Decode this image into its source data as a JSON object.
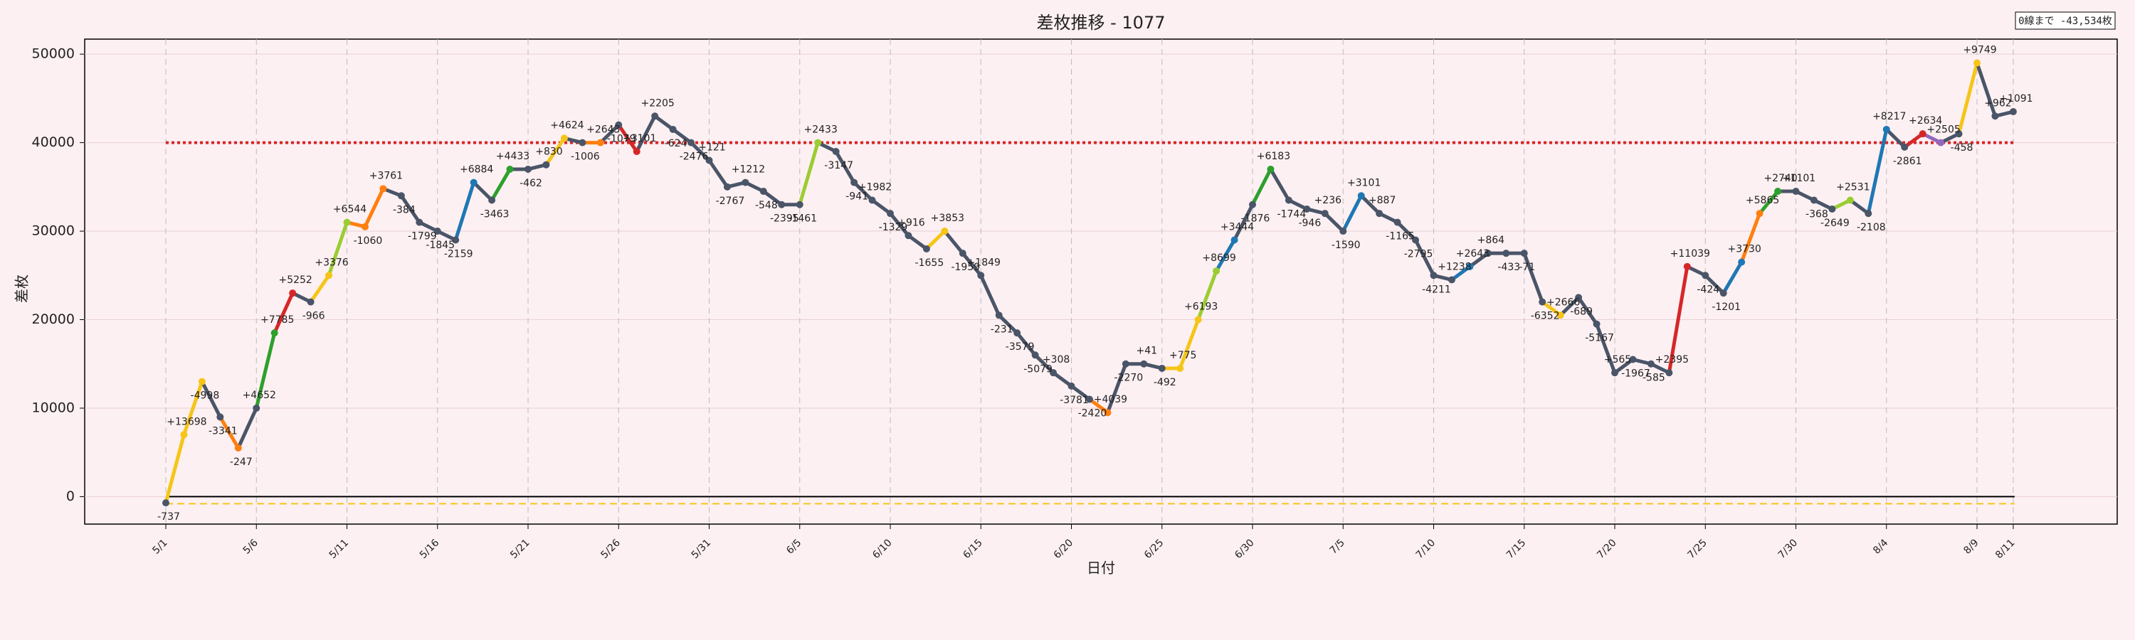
{
  "chart_data": {
    "type": "line",
    "title": "差枚推移 - 1077",
    "note": "0線まで -43,534枚",
    "xlabel": "日付",
    "ylabel": "差枚",
    "categories": [
      "5/1",
      null,
      null,
      null,
      null,
      "5/6",
      null,
      null,
      null,
      null,
      "5/11",
      null,
      null,
      null,
      null,
      "5/16",
      null,
      null,
      null,
      null,
      "5/21",
      null,
      null,
      null,
      null,
      "5/26",
      null,
      null,
      null,
      null,
      "5/31",
      null,
      null,
      null,
      null,
      "6/5",
      null,
      null,
      null,
      null,
      "6/10",
      null,
      null,
      null,
      null,
      "6/15",
      null,
      null,
      null,
      null,
      "6/20",
      null,
      null,
      null,
      null,
      "6/25",
      null,
      null,
      null,
      null,
      "6/30",
      null,
      null,
      null,
      null,
      "7/5",
      null,
      null,
      null,
      null,
      "7/10",
      null,
      null,
      null,
      null,
      "7/15",
      null,
      null,
      null,
      null,
      "7/20",
      null,
      null,
      null,
      null,
      "7/25",
      null,
      null,
      null,
      null,
      "7/30",
      null,
      null,
      null,
      null,
      "8/4",
      null,
      null,
      null,
      null,
      "8/9",
      null,
      "8/11"
    ],
    "category_label_colors": [
      null,
      null,
      null,
      null,
      null,
      null,
      null,
      null,
      null,
      null,
      null,
      null,
      null,
      null,
      null,
      null,
      null,
      null,
      null,
      null,
      null,
      null,
      null,
      null,
      null,
      null,
      null,
      null,
      null,
      null,
      null,
      null,
      null,
      null,
      null,
      "#e03030",
      null,
      null,
      null,
      null,
      null,
      null,
      null,
      null,
      null,
      "#e03030",
      null,
      null,
      null,
      null,
      null,
      null,
      null,
      null,
      null,
      "#e03030",
      null,
      null,
      null,
      null,
      null,
      null,
      null,
      null,
      null,
      "#e03030",
      null,
      null,
      null,
      null,
      null,
      null,
      null,
      null,
      null,
      "#e03030",
      null,
      null,
      null,
      null,
      null,
      null,
      null,
      null,
      null,
      "#e03030",
      null,
      null,
      null,
      null,
      null,
      null,
      null,
      null,
      null,
      null,
      null,
      null,
      null,
      null,
      null,
      null,
      null
    ],
    "color": "#4a5568",
    "values": [
      -700,
      7000,
      13000,
      9000,
      5500,
      10000,
      18500,
      23000,
      22000,
      25000,
      31000,
      30500,
      34800,
      34000,
      31000,
      30000,
      29000,
      35500,
      33500,
      37000,
      37000,
      37500,
      40500,
      40000,
      40000,
      42000,
      39000,
      43000,
      41500,
      40000,
      38000,
      35000,
      35500,
      34500,
      33000,
      33000,
      40000,
      39000,
      35500,
      33500,
      32000,
      29500,
      28000,
      30000,
      27500,
      25000,
      20500,
      18500,
      16000,
      14000,
      12500,
      11000,
      9500,
      15000,
      15000,
      14500,
      14500,
      20000,
      25500,
      29000,
      33000,
      37000,
      33500,
      32500,
      32000,
      30000,
      34000,
      32000,
      31000,
      29000,
      25000,
      24500,
      26000,
      27500,
      27500,
      27500,
      22000,
      20500,
      22500,
      19500,
      14000,
      15500,
      15000,
      14000,
      26000,
      25000,
      23000,
      26500,
      32000,
      34500,
      34500,
      33500,
      32500,
      33500,
      32000,
      41500,
      39500,
      41000,
      40000,
      41000,
      49000,
      43000,
      43500
    ],
    "day_colors": [
      null,
      "#f5c518",
      "#f5c518",
      null,
      "#ff7f0e",
      null,
      "#2ca02c",
      "#d62728",
      null,
      "#f5c518",
      "#9acd32",
      "#ff7f0e",
      "#ff7f0e",
      null,
      null,
      null,
      null,
      "#1f77b4",
      null,
      "#2ca02c",
      null,
      null,
      "#f5c518",
      null,
      "#ff7f0e",
      null,
      "#d62728",
      null,
      null,
      null,
      null,
      null,
      null,
      null,
      null,
      null,
      "#9acd32",
      null,
      null,
      null,
      null,
      null,
      null,
      "#f5c518",
      null,
      null,
      null,
      null,
      null,
      null,
      null,
      null,
      "#ff7f0e",
      null,
      null,
      null,
      "#f5c518",
      "#f5c518",
      "#9acd32",
      "#1f77b4",
      null,
      "#2ca02c",
      null,
      null,
      null,
      null,
      "#1f77b4",
      null,
      null,
      null,
      null,
      null,
      "#1f77b4",
      null,
      null,
      null,
      null,
      "#f5c518",
      null,
      null,
      null,
      null,
      null,
      null,
      "#d62728",
      null,
      null,
      "#1f77b4",
      "#ff7f0e",
      "#2ca02c",
      null,
      null,
      null,
      "#9acd32",
      null,
      "#1f77b4",
      null,
      "#d62728",
      "#9467bd",
      null,
      "#f5c518",
      null,
      null
    ],
    "annotations": [
      "-737",
      "+13698",
      "-4998",
      "-3341",
      "-247",
      "+4652",
      "+7785",
      "+5252",
      "-966",
      "+3376",
      "+6544",
      "-1060",
      "+3761",
      "-384",
      "-1799",
      "-1845",
      "-2159",
      "+6884",
      "-3463",
      "+4433",
      "-462",
      "+830",
      "+4624",
      "-1006",
      "+2643",
      "-1079",
      "+3101",
      "+2205",
      "-624",
      "-2476",
      "+121",
      "-2767",
      "+1212",
      "-548",
      "-2395",
      "-1461",
      "+2433",
      "-3147",
      "-941",
      "+1982",
      "-1329",
      "+916",
      "-1655",
      "+3853",
      "-1959",
      "+1849",
      "-231",
      "-3579",
      "-5079",
      "+308",
      "-3781",
      "-2420",
      "+4039",
      "-2270",
      "+41",
      "-492",
      "+775",
      "+6193",
      "+8699",
      "+3444",
      "-1876",
      "+6183",
      "-1744",
      "-946",
      "+236",
      "-1590",
      "+3101",
      "+887",
      "-1165",
      "-2795",
      "-4211",
      "+1238",
      "+2643",
      "+864",
      "-433",
      "-71",
      "-6352",
      "+2666",
      "-689",
      "-5167",
      "+565",
      "-1967",
      "-585",
      "+2395",
      "+11039",
      "-424",
      "-1201",
      "+3730",
      "+5865",
      "+2740",
      "+1101",
      "-368",
      "-2649",
      "+2531",
      "-2108",
      "+8217",
      "-2861",
      "+2634",
      "+2505",
      "-458",
      "+9749",
      "+962",
      "+1091"
    ],
    "ylim": [
      -3100,
      51700
    ],
    "yticks": [
      0,
      10000,
      20000,
      30000,
      40000,
      50000
    ],
    "hlines": [
      {
        "value": 40000,
        "color": "#d62728",
        "style": "dotted"
      },
      {
        "value": 0,
        "color": "#000000",
        "style": "solid"
      },
      {
        "value": -800,
        "color": "#f5c518",
        "style": "dashed"
      }
    ],
    "grid": true
  }
}
